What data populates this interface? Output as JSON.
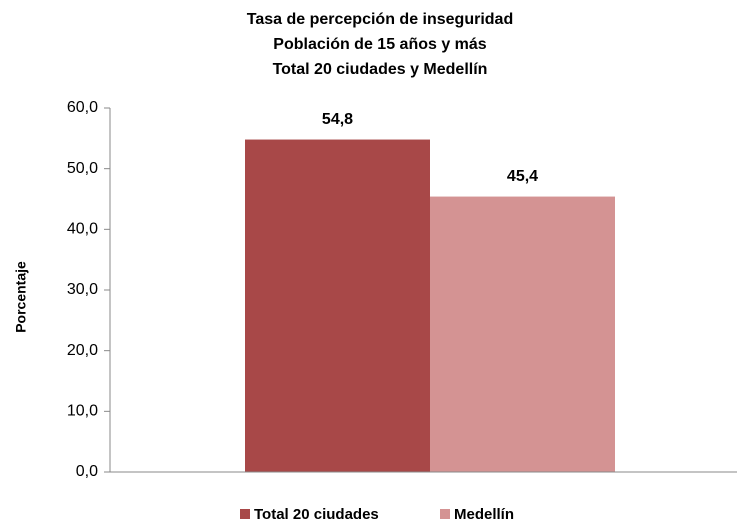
{
  "chart_data": {
    "type": "bar",
    "title": "Tasa de percepción de inseguridad",
    "subtitle": [
      "Población de 15 años y más",
      "Total 20 ciudades y Medellín"
    ],
    "ylabel": "Porcentaje",
    "categories": [
      null
    ],
    "series": [
      {
        "name": "Total 20 ciudades",
        "color": "#a84848",
        "values": [
          54.8
        ],
        "value_labels": [
          "54,8"
        ]
      },
      {
        "name": "Medellín",
        "color": "#d49393",
        "values": [
          45.4
        ],
        "value_labels": [
          "45,4"
        ]
      }
    ],
    "ylim": [
      0,
      60
    ],
    "yticks": [
      {
        "value": 0,
        "label": "0,0"
      },
      {
        "value": 10,
        "label": "10,0"
      },
      {
        "value": 20,
        "label": "20,0"
      },
      {
        "value": 30,
        "label": "30,0"
      },
      {
        "value": 40,
        "label": "40,0"
      },
      {
        "value": 50,
        "label": "50,0"
      },
      {
        "value": 60,
        "label": "60,0"
      }
    ],
    "grid": false,
    "legend": "bottom"
  }
}
